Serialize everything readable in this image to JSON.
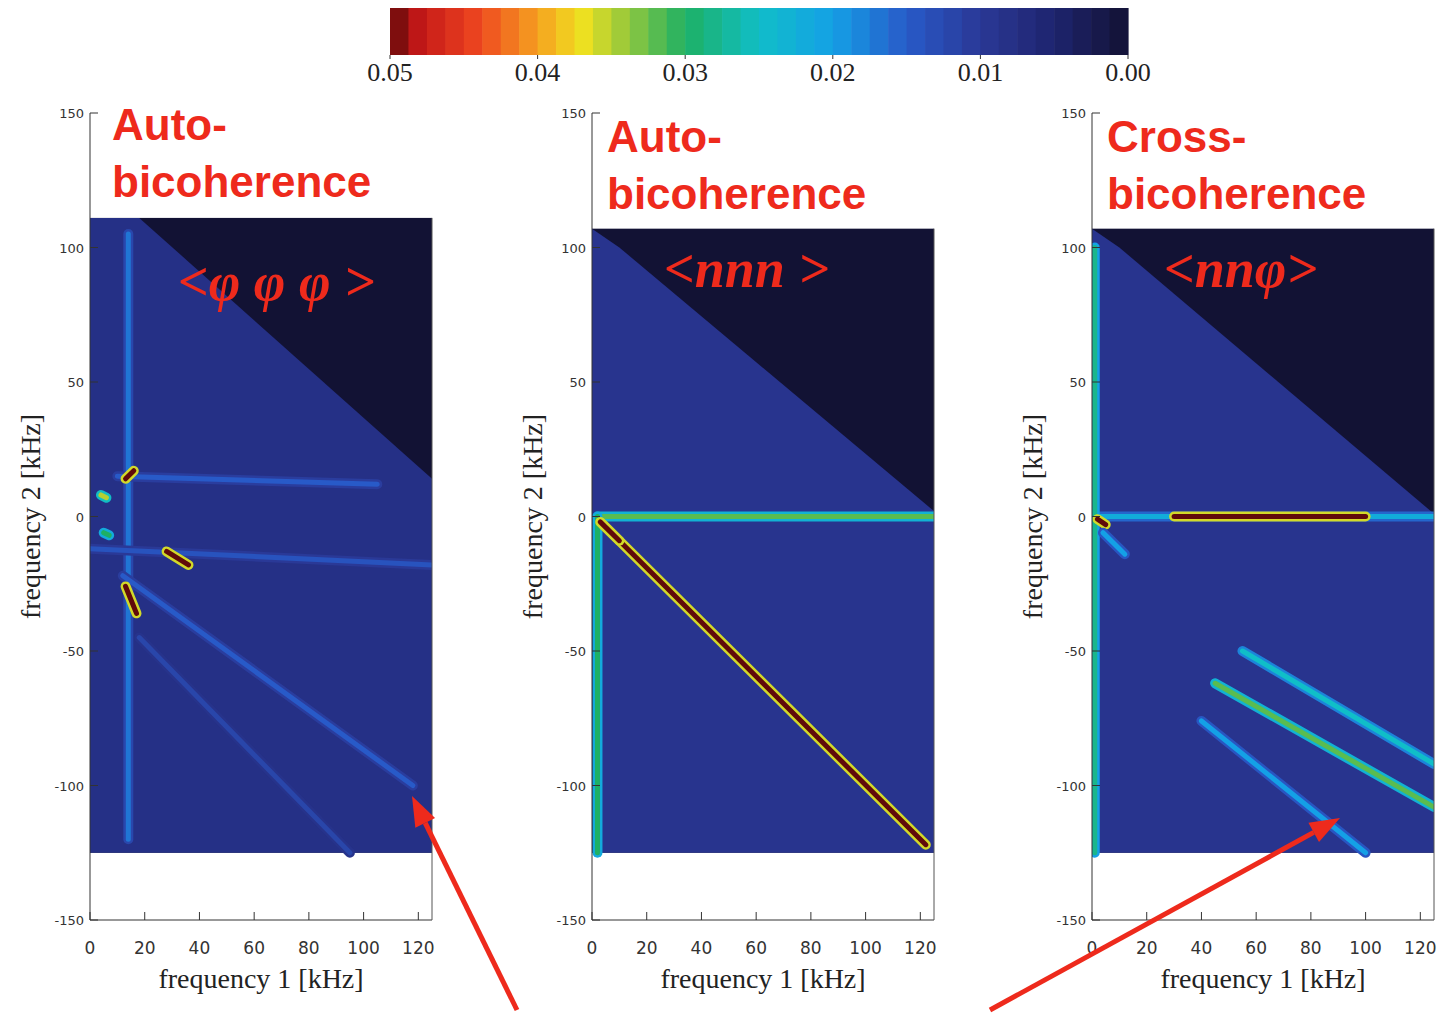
{
  "colorbar": {
    "range": [
      0.05,
      0
    ],
    "ticks": [
      0.05,
      0.04,
      0.03,
      0.02,
      0.01,
      {
        "value": 0,
        "label": "0.00"
      }
    ]
  },
  "chart_data": [
    {
      "type": "heatmap",
      "title": "Auto-bicoherence",
      "subtitle": "<φ φ φ >",
      "xlabel": "frequency 1 [kHz]",
      "ylabel": "frequency 2 [kHz]",
      "xlim": [
        0,
        125
      ],
      "ylim": [
        -150,
        150
      ],
      "xticks": [
        0,
        20,
        40,
        60,
        80,
        100,
        120
      ],
      "yticks": [
        -150,
        -100,
        -50,
        0,
        50,
        100,
        150
      ],
      "map_f2_range": [
        -125,
        111
      ],
      "background": 0,
      "domain_value": 0.008,
      "domain": [
        [
          0,
          111
        ],
        [
          18,
          111
        ],
        [
          125,
          14
        ],
        [
          125,
          -125
        ],
        [
          0,
          -125
        ]
      ],
      "features": [
        {
          "from": [
            14,
            105
          ],
          "to": [
            14,
            -120
          ],
          "value": 0.017
        },
        {
          "from": [
            10,
            15
          ],
          "to": [
            105,
            12
          ],
          "value": 0.015
        },
        {
          "from": [
            0,
            -12
          ],
          "to": [
            125,
            -18
          ],
          "value": 0.014
        },
        {
          "from": [
            12,
            -22
          ],
          "to": [
            118,
            -100
          ],
          "value": 0.015
        },
        {
          "from": [
            18,
            -45
          ],
          "to": [
            95,
            -125
          ],
          "value": 0.012
        },
        {
          "from": [
            13,
            14
          ],
          "to": [
            16,
            17
          ],
          "value": 0.05
        },
        {
          "from": [
            28,
            -13
          ],
          "to": [
            36,
            -18
          ],
          "value": 0.05
        },
        {
          "from": [
            13,
            -26
          ],
          "to": [
            17,
            -36
          ],
          "value": 0.05
        },
        {
          "from": [
            4,
            8
          ],
          "to": [
            6,
            7
          ],
          "value": 0.035
        },
        {
          "from": [
            5,
            -6
          ],
          "to": [
            7,
            -7
          ],
          "value": 0.03
        }
      ]
    },
    {
      "type": "heatmap",
      "title": "Auto-bicoherence",
      "subtitle": "<nnn >",
      "xlabel": "frequency 1 [kHz]",
      "ylabel": "frequency 2 [kHz]",
      "xlim": [
        0,
        125
      ],
      "ylim": [
        -150,
        150
      ],
      "xticks": [
        0,
        20,
        40,
        60,
        80,
        100,
        120
      ],
      "yticks": [
        -150,
        -100,
        -50,
        0,
        50,
        100,
        150
      ],
      "map_f2_range": [
        -125,
        107
      ],
      "background": 0,
      "domain_value": 0.009,
      "domain": [
        [
          0,
          107
        ],
        [
          10,
          100
        ],
        [
          125,
          2
        ],
        [
          125,
          -125
        ],
        [
          0,
          -125
        ]
      ],
      "features": [
        {
          "from": [
            2,
            0
          ],
          "to": [
            125,
            0
          ],
          "value": 0.032
        },
        {
          "from": [
            2,
            0
          ],
          "to": [
            2,
            -125
          ],
          "value": 0.03
        },
        {
          "from": [
            4,
            -3
          ],
          "to": [
            122,
            -122
          ],
          "value": 0.05
        },
        {
          "from": [
            3,
            -2
          ],
          "to": [
            10,
            -9
          ],
          "value": 0.05
        }
      ]
    },
    {
      "type": "heatmap",
      "title": "Cross-bicoherence",
      "subtitle": "<nnφ>",
      "xlabel": "frequency 1 [kHz]",
      "ylabel": "frequency 2 [kHz]",
      "xlim": [
        0,
        125
      ],
      "ylim": [
        -150,
        150
      ],
      "xticks": [
        0,
        20,
        40,
        60,
        80,
        100,
        120
      ],
      "yticks": [
        -150,
        -100,
        -50,
        0,
        50,
        100,
        150
      ],
      "map_f2_range": [
        -125,
        107
      ],
      "background": 0,
      "domain_value": 0.009,
      "domain": [
        [
          0,
          107
        ],
        [
          10,
          100
        ],
        [
          125,
          1
        ],
        [
          125,
          -125
        ],
        [
          0,
          -125
        ]
      ],
      "features": [
        {
          "from": [
            0,
            0
          ],
          "to": [
            125,
            0
          ],
          "value": 0.022
        },
        {
          "from": [
            30,
            0
          ],
          "to": [
            100,
            0
          ],
          "value": 0.05
        },
        {
          "from": [
            1,
            100
          ],
          "to": [
            1,
            -125
          ],
          "value": 0.028
        },
        {
          "from": [
            2,
            -1
          ],
          "to": [
            5,
            -3
          ],
          "value": 0.05
        },
        {
          "from": [
            45,
            -62
          ],
          "to": [
            125,
            -108
          ],
          "value": 0.032
        },
        {
          "from": [
            55,
            -50
          ],
          "to": [
            125,
            -92
          ],
          "value": 0.025
        },
        {
          "from": [
            40,
            -76
          ],
          "to": [
            100,
            -125
          ],
          "value": 0.02
        },
        {
          "from": [
            4,
            -6
          ],
          "to": [
            12,
            -14
          ],
          "value": 0.02
        }
      ]
    }
  ]
}
